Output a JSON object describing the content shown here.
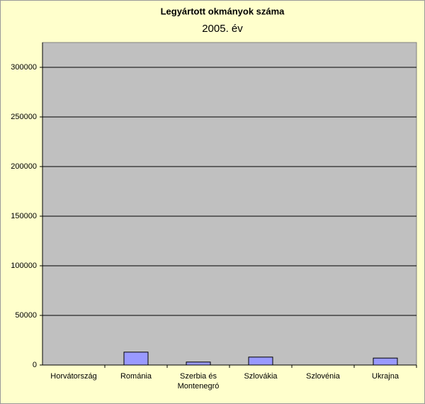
{
  "chart_data": {
    "type": "bar",
    "title": "Legyártott okmányok száma",
    "subtitle": "2005. év",
    "categories": [
      "Horvátország",
      "Románia",
      "Szerbia és Montenegró",
      "Szlovákia",
      "Szlovénia",
      "Ukrajna"
    ],
    "values": [
      0,
      13000,
      3000,
      8000,
      0,
      7000
    ],
    "color": "#9999ff",
    "ylim": [
      0,
      325000
    ],
    "yticks": [
      0,
      50000,
      100000,
      150000,
      200000,
      250000,
      300000
    ],
    "grid": true
  }
}
